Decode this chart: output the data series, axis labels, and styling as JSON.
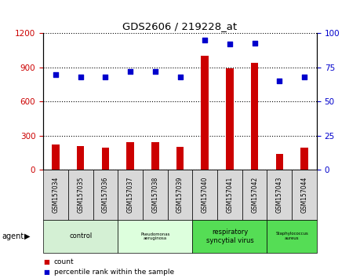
{
  "title": "GDS2606 / 219228_at",
  "samples": [
    "GSM157034",
    "GSM157035",
    "GSM157036",
    "GSM157037",
    "GSM157038",
    "GSM157039",
    "GSM157040",
    "GSM157041",
    "GSM157042",
    "GSM157043",
    "GSM157044"
  ],
  "counts": [
    220,
    210,
    195,
    245,
    240,
    200,
    1000,
    890,
    940,
    140,
    195
  ],
  "percentiles": [
    70,
    68,
    68,
    72,
    72,
    68,
    95,
    92,
    93,
    65,
    68
  ],
  "ylim_left": [
    0,
    1200
  ],
  "ylim_right": [
    0,
    100
  ],
  "yticks_left": [
    0,
    300,
    600,
    900,
    1200
  ],
  "yticks_right": [
    0,
    25,
    50,
    75,
    100
  ],
  "bar_color": "#cc0000",
  "scatter_color": "#0000cc",
  "tick_color_left": "#cc0000",
  "tick_color_right": "#0000cc",
  "agent_label": "agent",
  "legend_count": "count",
  "legend_pct": "percentile rank within the sample",
  "group_configs": [
    {
      "label": "control",
      "indices": [
        0,
        1,
        2
      ],
      "color": "#d4f0d4",
      "fontsize": 11
    },
    {
      "label": "Pseudomonas\naeruginosa",
      "indices": [
        3,
        4,
        5
      ],
      "color": "#ddffdd",
      "fontsize": 7
    },
    {
      "label": "respiratory\nsyncytial virus",
      "indices": [
        6,
        7,
        8
      ],
      "color": "#55dd55",
      "fontsize": 11
    },
    {
      "label": "Staphylococcus\naureus",
      "indices": [
        9,
        10
      ],
      "color": "#55dd55",
      "fontsize": 7
    }
  ]
}
